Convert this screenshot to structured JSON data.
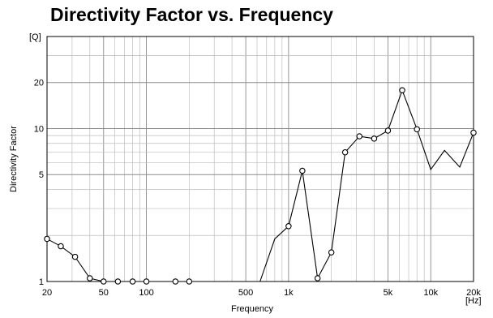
{
  "chart_data": {
    "type": "line",
    "title": "Directivity Factor vs. Frequency",
    "xlabel": "Frequency",
    "ylabel": "Directivity Factor",
    "x_unit": "[Hz]",
    "y_unit": "[Q]",
    "x_scale": "log",
    "y_scale": "log",
    "xlim": [
      20,
      20000
    ],
    "ylim": [
      1,
      40
    ],
    "grid": true,
    "x_tick_labels": [
      {
        "value": 20,
        "label": "20"
      },
      {
        "value": 50,
        "label": "50"
      },
      {
        "value": 100,
        "label": "100"
      },
      {
        "value": 500,
        "label": "500"
      },
      {
        "value": 1000,
        "label": "1k"
      },
      {
        "value": 5000,
        "label": "5k"
      },
      {
        "value": 10000,
        "label": "10k"
      },
      {
        "value": 20000,
        "label": "20k"
      }
    ],
    "y_tick_labels": [
      {
        "value": 1,
        "label": "1"
      },
      {
        "value": 5,
        "label": "5"
      },
      {
        "value": 10,
        "label": "10"
      },
      {
        "value": 20,
        "label": "20"
      }
    ],
    "series": [
      {
        "line_color": "#000000",
        "points": [
          {
            "x": 20,
            "y": 1.9,
            "marker": true
          },
          {
            "x": 25,
            "y": 1.7,
            "marker": true
          },
          {
            "x": 31.5,
            "y": 1.45,
            "marker": true
          },
          {
            "x": 40,
            "y": 1.05,
            "marker": true
          },
          {
            "x": 50,
            "y": 1.0,
            "marker": true
          },
          {
            "x": 63,
            "y": 1.0,
            "marker": true
          },
          {
            "x": 80,
            "y": 1.0,
            "marker": true
          },
          {
            "x": 100,
            "y": 1.0,
            "marker": true
          },
          {
            "x": 160,
            "y": 1.0,
            "marker": true
          },
          {
            "x": 200,
            "y": 1.0,
            "marker": true
          },
          {
            "x": 630,
            "y": 1.0,
            "marker": false
          },
          {
            "x": 800,
            "y": 1.9,
            "marker": false
          },
          {
            "x": 1000,
            "y": 2.3,
            "marker": true
          },
          {
            "x": 1250,
            "y": 5.3,
            "marker": true
          },
          {
            "x": 1600,
            "y": 1.05,
            "marker": true
          },
          {
            "x": 2000,
            "y": 1.55,
            "marker": true
          },
          {
            "x": 2500,
            "y": 7.0,
            "marker": true
          },
          {
            "x": 3150,
            "y": 8.9,
            "marker": true
          },
          {
            "x": 4000,
            "y": 8.6,
            "marker": true
          },
          {
            "x": 5000,
            "y": 9.7,
            "marker": true
          },
          {
            "x": 6300,
            "y": 17.8,
            "marker": true
          },
          {
            "x": 8000,
            "y": 9.9,
            "marker": true
          },
          {
            "x": 10000,
            "y": 5.4,
            "marker": false
          },
          {
            "x": 12500,
            "y": 7.2,
            "marker": false
          },
          {
            "x": 16000,
            "y": 5.6,
            "marker": false
          },
          {
            "x": 20000,
            "y": 9.4,
            "marker": true
          }
        ]
      }
    ]
  }
}
